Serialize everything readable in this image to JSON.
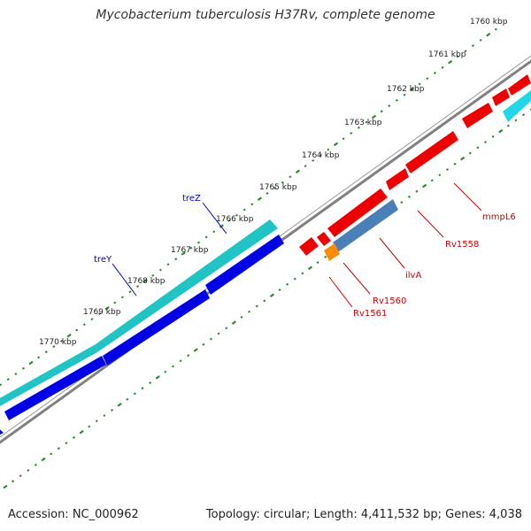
{
  "title": "Mycobacterium tuberculosis H37Rv, complete genome",
  "footer": {
    "accession": "Accession: NC_000962",
    "stats": "Topology: circular; Length: 4,411,532 bp; Genes: 4,038"
  },
  "colors": {
    "backbone": "#808080",
    "ticks": "#2e8b2e",
    "forward_cds": "#0000e6",
    "forward_rna": "#20c4c4",
    "reverse_cds": "#ee0000",
    "reverse_highlight": "#4a7fb8",
    "reverse_small": "#ff8c00",
    "cyan_gene": "#22d8e8",
    "forward_label": "#0000cc",
    "reverse_label": "#cc0000"
  },
  "scale_labels": [
    "1760 kbp",
    "1761 kbp",
    "1762 kbp",
    "1763 kbp",
    "1764 kbp",
    "1765 kbp",
    "1766 kbp",
    "1767 kbp",
    "1768 kbp",
    "1769 kbp",
    "1770 kbp"
  ],
  "forward_gene_labels": [
    "treZ",
    "treY"
  ],
  "reverse_gene_labels": [
    "mmpL6",
    "Rv1558",
    "ilvA",
    "Rv1560",
    "Rv1561"
  ]
}
